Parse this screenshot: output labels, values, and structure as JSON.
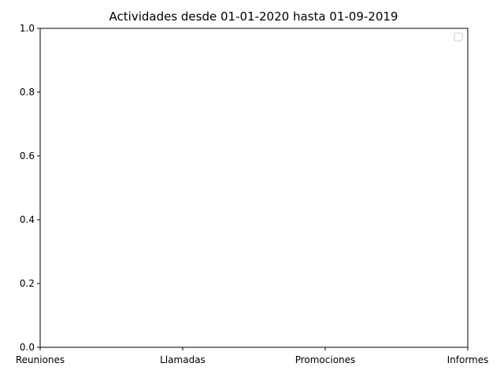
{
  "chart_data": {
    "type": "bar",
    "title": "Actividades desde 01-01-2020 hasta 01-09-2019",
    "categories": [
      "Reuniones",
      "Llamadas",
      "Promociones",
      "Informes"
    ],
    "series": [],
    "xlabel": "",
    "ylabel": "",
    "ylim": [
      0,
      1
    ],
    "yticks": [
      "0.0",
      "0.2",
      "0.4",
      "0.6",
      "0.8",
      "1.0"
    ],
    "grid": false,
    "legend": {
      "position": "top-right",
      "entries": []
    }
  }
}
